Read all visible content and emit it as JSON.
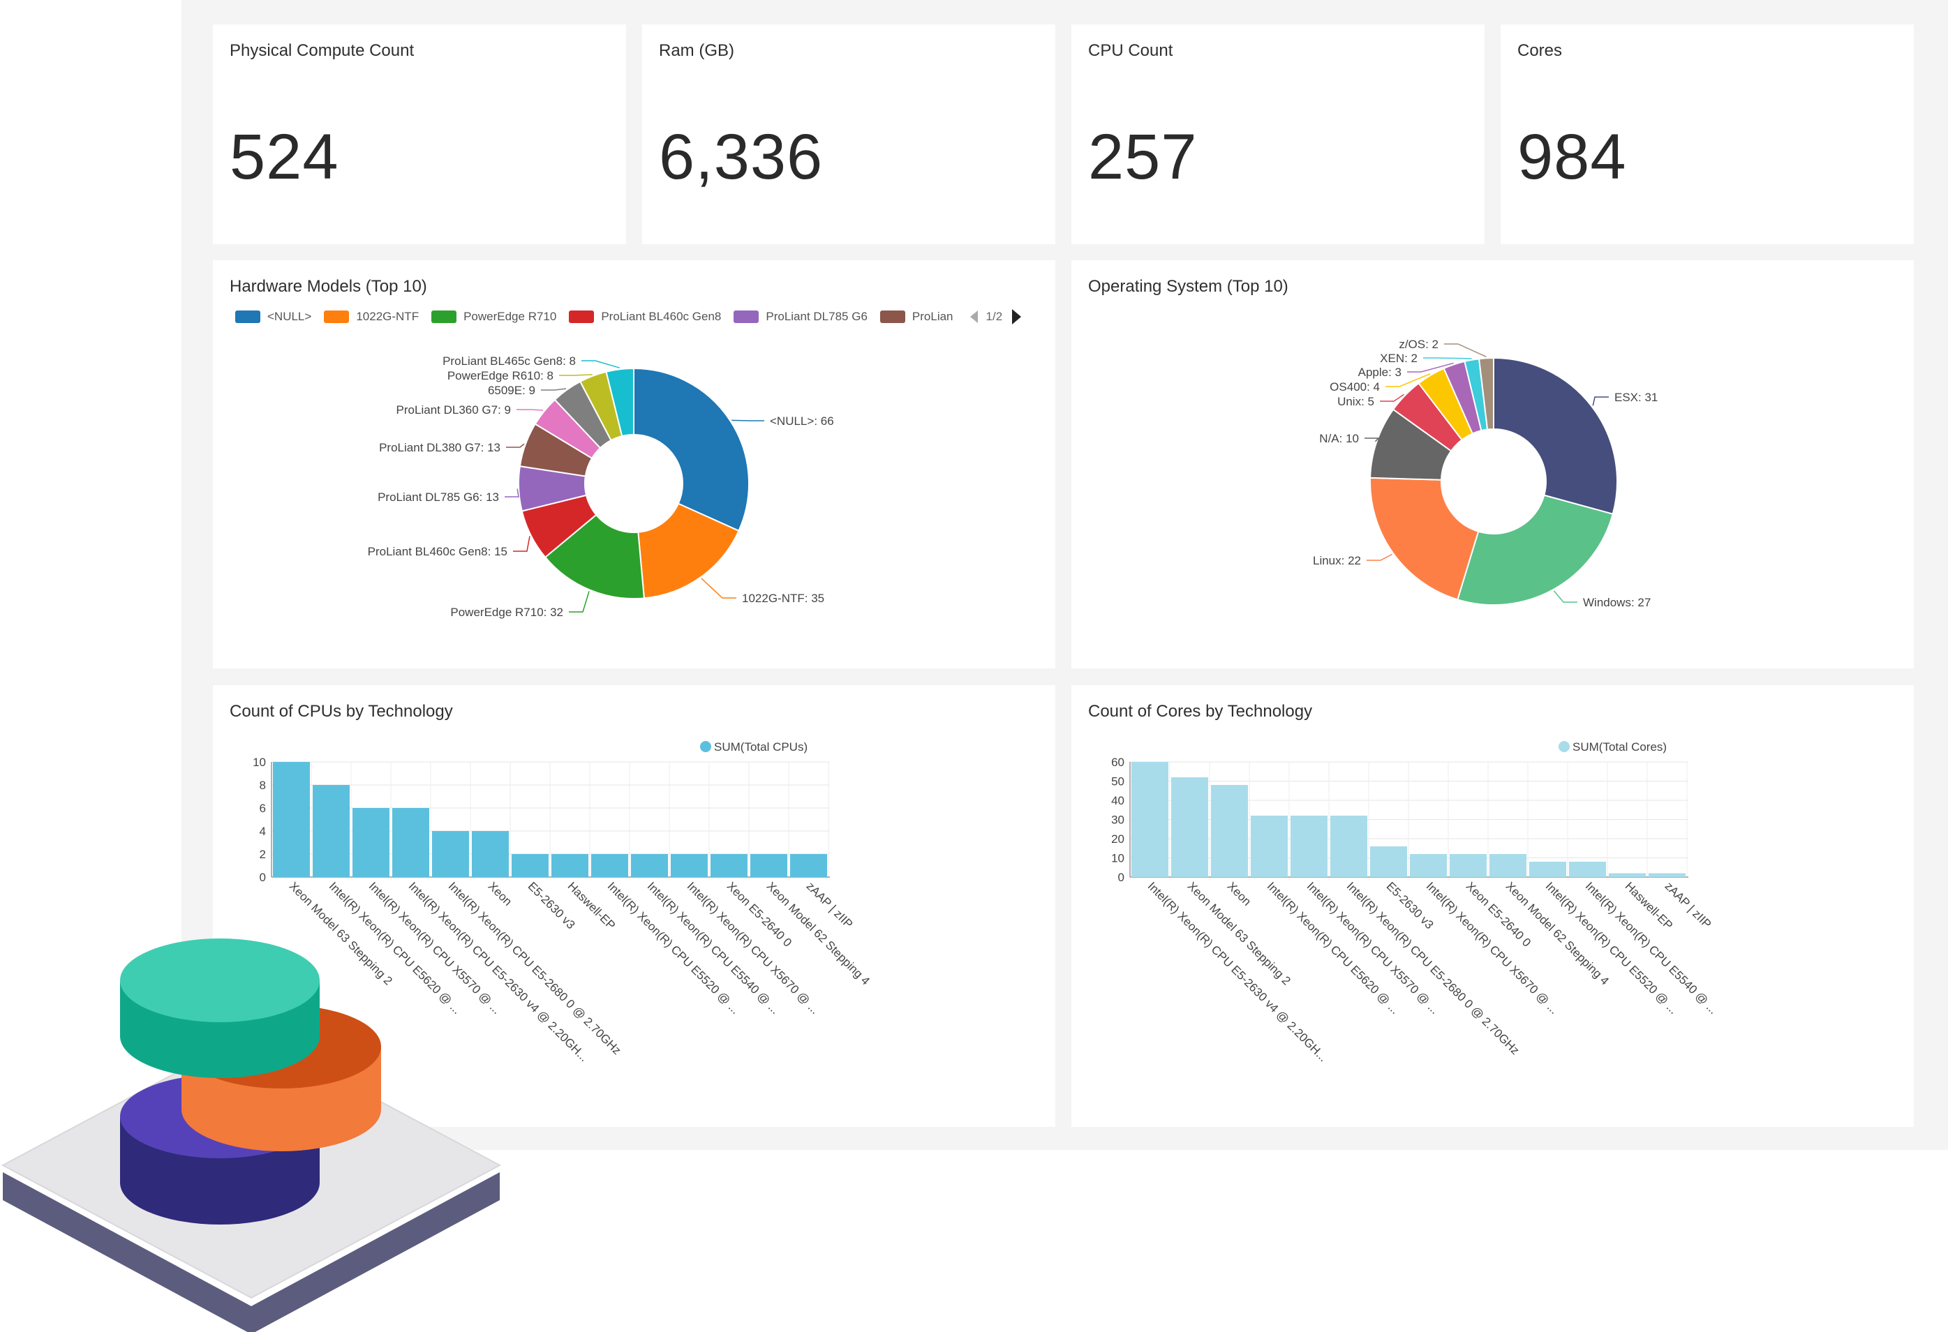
{
  "kpis": [
    {
      "title": "Physical Compute Count",
      "value": "524"
    },
    {
      "title": "Ram (GB)",
      "value": "6,336"
    },
    {
      "title": "CPU Count",
      "value": "257"
    },
    {
      "title": "Cores",
      "value": "984"
    }
  ],
  "hardware": {
    "title": "Hardware Models (Top 10)",
    "legend": [
      {
        "label": "<NULL>",
        "color": "#1f77b4"
      },
      {
        "label": "1022G-NTF",
        "color": "#ff7f0e"
      },
      {
        "label": "PowerEdge R710",
        "color": "#2ca02c"
      },
      {
        "label": "ProLiant BL460c Gen8",
        "color": "#d62728"
      },
      {
        "label": "ProLiant DL785 G6",
        "color": "#9467bd"
      },
      {
        "label": "ProLian",
        "color": "#8c564b"
      }
    ],
    "page": "1/2"
  },
  "os": {
    "title": "Operating System (Top 10)"
  },
  "cpus": {
    "title": "Count of CPUs by Technology",
    "legend": "SUM(Total CPUs)"
  },
  "cores": {
    "title": "Count of Cores by Technology",
    "legend": "SUM(Total Cores)"
  },
  "chart_data": [
    {
      "type": "pie",
      "donut": true,
      "title": "Hardware Models (Top 10)",
      "categories": [
        "<NULL>",
        "1022G-NTF",
        "PowerEdge R710",
        "ProLiant BL460c Gen8",
        "ProLiant DL785 G6",
        "ProLiant DL380 G7",
        "ProLiant DL360 G7",
        "6509E",
        "PowerEdge R610",
        "ProLiant BL465c Gen8"
      ],
      "values": [
        66,
        35,
        32,
        15,
        13,
        13,
        9,
        9,
        8,
        8
      ],
      "data_labels": [
        "<NULL>: 66",
        "1022G-NTF: 35",
        "PowerEdge R710: 32",
        "ProLiant BL460c Gen8: 15",
        "ProLiant DL785 G6: 13",
        "ProLiant DL380 G7: 13",
        "ProLiant DL360 G7: 9",
        "6509E: 9",
        "PowerEdge R610: 8",
        "ProLiant BL465c Gen8: 8"
      ],
      "colors": [
        "#1f77b4",
        "#ff7f0e",
        "#2ca02c",
        "#d62728",
        "#9467bd",
        "#8c564b",
        "#e377c2",
        "#7f7f7f",
        "#bcbd22",
        "#17becf"
      ],
      "legend": "top"
    },
    {
      "type": "pie",
      "donut": true,
      "title": "Operating System (Top 10)",
      "categories": [
        "ESX",
        "Windows",
        "Linux",
        "N/A",
        "Unix",
        "OS400",
        "Apple",
        "XEN",
        "z/OS"
      ],
      "values": [
        31,
        27,
        22,
        10,
        5,
        4,
        3,
        2,
        2
      ],
      "data_labels": [
        "ESX: 31",
        "Windows: 27",
        "Linux: 22",
        "N/A: 10",
        "Unix: 5",
        "OS400: 4",
        "Apple: 3",
        "XEN: 2",
        "z/OS: 2"
      ],
      "colors": [
        "#454e7c",
        "#5ac189",
        "#fe7f45",
        "#666666",
        "#e04355",
        "#fcc700",
        "#a868b7",
        "#3cccdb",
        "#a38f79"
      ]
    },
    {
      "type": "bar",
      "title": "Count of CPUs by Technology",
      "categories": [
        "Xeon Model 63 Stepping 2",
        "Intel(R) Xeon(R) CPU E5620 @ ...",
        "Intel(R) Xeon(R) CPU X5570 @ ...",
        "Intel(R) Xeon(R) CPU E5-2630 v4 @ 2.20GH...",
        "Intel(R) Xeon(R) CPU E5-2680 0 @ 2.70GHz",
        "Xeon",
        "E5-2630 v3",
        "Haswell-EP",
        "Intel(R) Xeon(R) CPU E5520 @ ...",
        "Intel(R) Xeon(R) CPU E5540 @ ...",
        "Intel(R) Xeon(R) CPU X5670 @ ...",
        "Xeon E5-2640 0",
        "Xeon Model 62 Stepping 4",
        "zAAP | zIIP"
      ],
      "series": [
        {
          "name": "SUM(Total CPUs)",
          "values": [
            10,
            8,
            6,
            6,
            4,
            4,
            2,
            2,
            2,
            2,
            2,
            2,
            2,
            2
          ]
        }
      ],
      "yticks": [
        0,
        2,
        4,
        6,
        8,
        10
      ],
      "ylim": [
        0,
        10
      ],
      "color": "#5bc0de",
      "grid": true,
      "legend": "top-right"
    },
    {
      "type": "bar",
      "title": "Count of Cores by Technology",
      "categories": [
        "Intel(R) Xeon(R) CPU E5-2630 v4 @ 2.20GH...",
        "Xeon Model 63 Stepping 2",
        "Xeon",
        "Intel(R) Xeon(R) CPU E5620 @ ...",
        "Intel(R) Xeon(R) CPU X5570 @ ...",
        "Intel(R) Xeon(R) CPU E5-2680 0 @ 2.70GHz",
        "E5-2630 v3",
        "Intel(R) Xeon(R) CPU X5670 @ ...",
        "Xeon E5-2640 0",
        "Xeon Model 62 Stepping 4",
        "Intel(R) Xeon(R) CPU E5520 @ ...",
        "Intel(R) Xeon(R) CPU E5540 @ ...",
        "Haswell-EP",
        "zAAP | zIIP"
      ],
      "series": [
        {
          "name": "SUM(Total Cores)",
          "values": [
            60,
            52,
            48,
            32,
            32,
            32,
            16,
            12,
            12,
            12,
            8,
            8,
            2,
            2
          ]
        }
      ],
      "yticks": [
        0,
        10,
        20,
        30,
        40,
        50,
        60
      ],
      "ylim": [
        0,
        60
      ],
      "color": "#a8dcea",
      "grid": true,
      "legend": "top-right"
    }
  ]
}
